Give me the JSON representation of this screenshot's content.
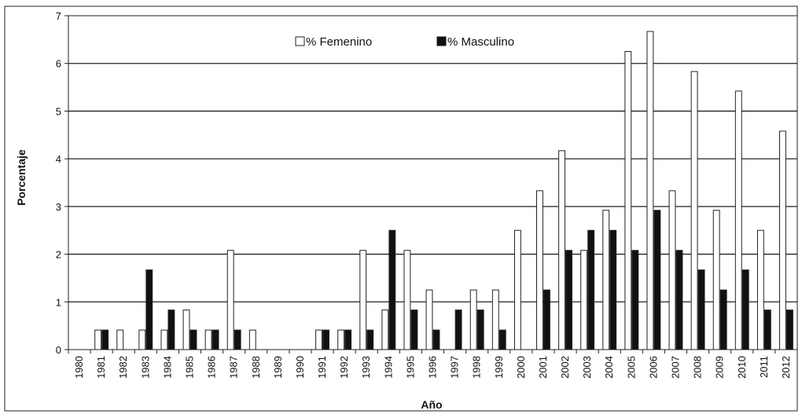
{
  "chart_data": {
    "type": "bar",
    "title": "",
    "xlabel": "Año",
    "ylabel": "Porcentaje",
    "ylim": [
      0,
      7
    ],
    "yticks": [
      "0",
      "1",
      "2",
      "3",
      "4",
      "5",
      "6",
      "7"
    ],
    "grid": true,
    "legend_position": "top-center",
    "categories": [
      "1980",
      "1981",
      "1982",
      "1983",
      "1984",
      "1985",
      "1986",
      "1987",
      "1988",
      "1989",
      "1990",
      "1991",
      "1992",
      "1993",
      "1994",
      "1995",
      "1996",
      "1997",
      "1998",
      "1999",
      "2000",
      "2001",
      "2002",
      "2003",
      "2004",
      "2005",
      "2006",
      "2007",
      "2008",
      "2009",
      "2010",
      "2011",
      "2012"
    ],
    "series": [
      {
        "name": "% Femenino",
        "color": "#ffffff",
        "values": [
          0,
          0.41,
          0.41,
          0.41,
          0.41,
          0.83,
          0.41,
          2.08,
          0.41,
          0,
          0,
          0.41,
          0.41,
          2.08,
          0.83,
          2.08,
          1.25,
          0,
          1.25,
          1.25,
          2.5,
          3.33,
          4.17,
          2.08,
          2.92,
          6.25,
          6.67,
          3.33,
          5.83,
          2.92,
          5.42,
          2.5,
          4.58
        ]
      },
      {
        "name": "% Masculino",
        "color": "#111111",
        "values": [
          0,
          0.41,
          0,
          1.67,
          0.83,
          0.41,
          0.41,
          0.41,
          0,
          0,
          0,
          0.41,
          0.41,
          0.41,
          2.5,
          0.83,
          0.41,
          0.83,
          0.83,
          0.41,
          0,
          1.25,
          2.08,
          2.5,
          2.5,
          2.08,
          2.92,
          2.08,
          1.67,
          1.25,
          1.67,
          0.83,
          0.83
        ]
      }
    ]
  }
}
